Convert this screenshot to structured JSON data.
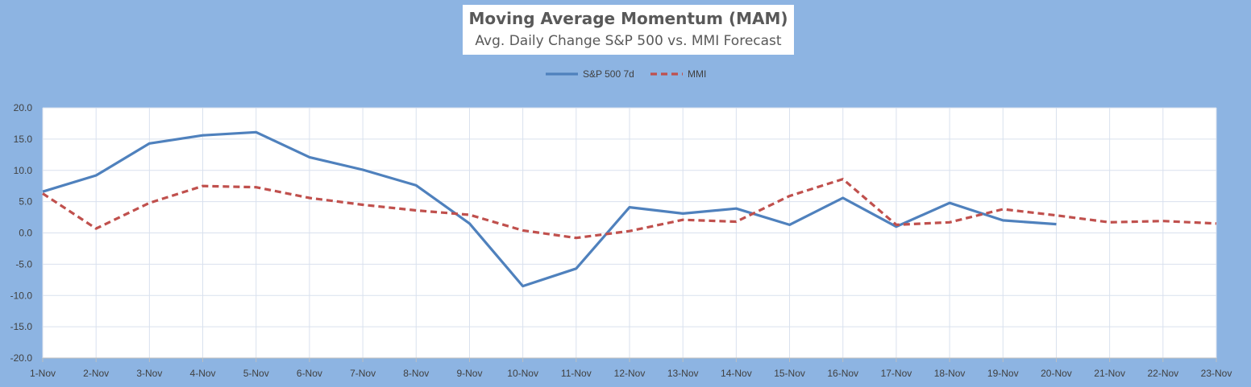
{
  "chart_data": {
    "type": "line",
    "title": "Moving Average Momentum (MAM)",
    "subtitle": "Avg. Daily Change S&P 500 vs. MMI Forecast",
    "xlabel": "",
    "ylabel": "",
    "ylim": [
      -20,
      20
    ],
    "y_ticks": [
      "20.0",
      "15.0",
      "10.0",
      "5.0",
      "0.0",
      "-5.0",
      "-10.0",
      "-15.0",
      "-20.0"
    ],
    "categories": [
      "1-Nov",
      "2-Nov",
      "3-Nov",
      "4-Nov",
      "5-Nov",
      "6-Nov",
      "7-Nov",
      "8-Nov",
      "9-Nov",
      "10-Nov",
      "11-Nov",
      "12-Nov",
      "13-Nov",
      "14-Nov",
      "15-Nov",
      "16-Nov",
      "17-Nov",
      "18-Nov",
      "19-Nov",
      "20-Nov",
      "21-Nov",
      "22-Nov",
      "23-Nov"
    ],
    "grid": true,
    "legend_position": "top-center",
    "series": [
      {
        "name": "S&P 500 7d",
        "color": "#4f81bd",
        "dash": "solid",
        "values": [
          6.6,
          9.2,
          14.3,
          15.6,
          16.1,
          12.1,
          10.1,
          7.6,
          1.5,
          -8.5,
          -5.7,
          4.1,
          3.1,
          3.9,
          1.3,
          5.6,
          1.0,
          4.8,
          2.0,
          1.4,
          null,
          null,
          null
        ]
      },
      {
        "name": "MMI",
        "color": "#c0504d",
        "dash": "dashed",
        "values": [
          6.3,
          0.7,
          4.8,
          7.5,
          7.3,
          5.6,
          4.5,
          3.6,
          2.9,
          0.4,
          -0.8,
          0.3,
          2.1,
          1.8,
          5.9,
          8.6,
          1.3,
          1.7,
          3.8,
          2.8,
          1.7,
          1.9,
          1.5
        ]
      }
    ]
  }
}
